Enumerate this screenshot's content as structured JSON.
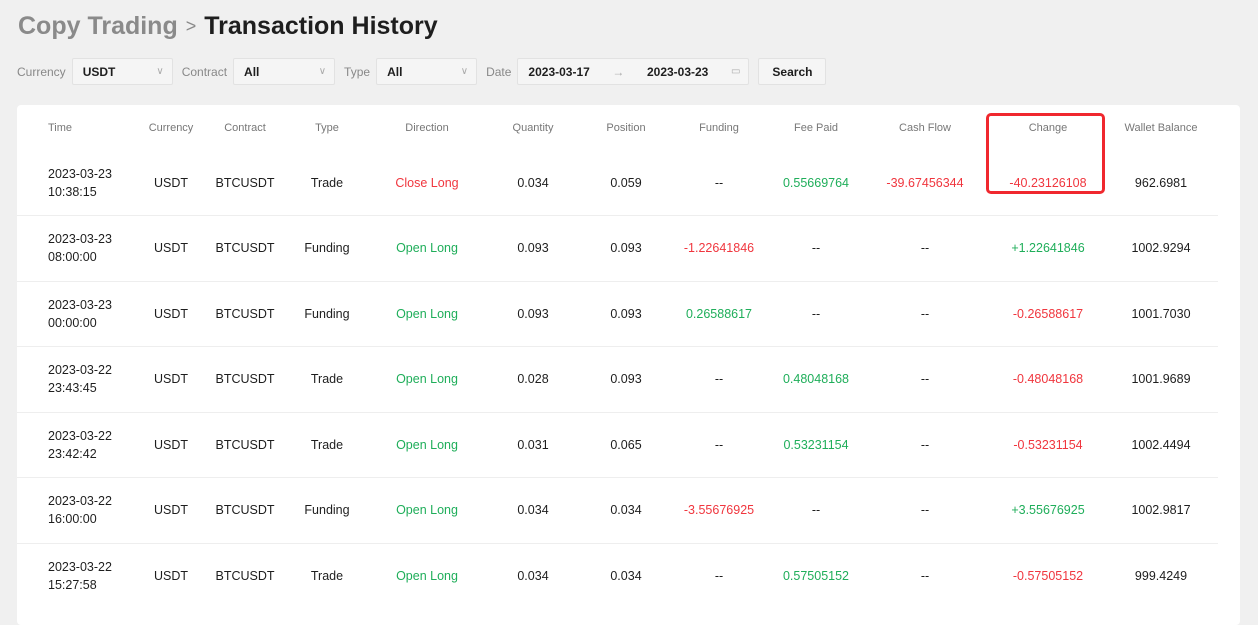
{
  "breadcrumb": {
    "parent": "Copy Trading",
    "separator": ">",
    "current": "Transaction History"
  },
  "filters": {
    "currency_label": "Currency",
    "currency": "USDT",
    "contract_label": "Contract",
    "contract": "All",
    "type_label": "Type",
    "type": "All",
    "date_label": "Date",
    "date_from": "2023-03-17",
    "date_arrow": "→",
    "date_to": "2023-03-23",
    "search": "Search"
  },
  "colors": {
    "negative": "#f0363e",
    "positive": "#1fae5a",
    "highlight": "#f0282e"
  },
  "table": {
    "headers": [
      "Time",
      "Currency",
      "Contract",
      "Type",
      "Direction",
      "Quantity",
      "Position",
      "Funding",
      "Fee Paid",
      "Cash Flow",
      "Change",
      "Wallet Balance"
    ],
    "rows": [
      {
        "date": "2023-03-23",
        "time": "10:38:15",
        "currency": "USDT",
        "contract": "BTCUSDT",
        "type": "Trade",
        "direction": "Close Long",
        "quantity": "0.034",
        "position": "0.059",
        "funding": "--",
        "fee": "0.55669764",
        "cash_flow": "-39.67456344",
        "change": "-40.23126108",
        "wallet": "962.6981"
      },
      {
        "date": "2023-03-23",
        "time": "08:00:00",
        "currency": "USDT",
        "contract": "BTCUSDT",
        "type": "Funding",
        "direction": "Open Long",
        "quantity": "0.093",
        "position": "0.093",
        "funding": "-1.22641846",
        "fee": "--",
        "cash_flow": "--",
        "change": "+1.22641846",
        "wallet": "1002.9294"
      },
      {
        "date": "2023-03-23",
        "time": "00:00:00",
        "currency": "USDT",
        "contract": "BTCUSDT",
        "type": "Funding",
        "direction": "Open Long",
        "quantity": "0.093",
        "position": "0.093",
        "funding": "0.26588617",
        "fee": "--",
        "cash_flow": "--",
        "change": "-0.26588617",
        "wallet": "1001.7030"
      },
      {
        "date": "2023-03-22",
        "time": "23:43:45",
        "currency": "USDT",
        "contract": "BTCUSDT",
        "type": "Trade",
        "direction": "Open Long",
        "quantity": "0.028",
        "position": "0.093",
        "funding": "--",
        "fee": "0.48048168",
        "cash_flow": "--",
        "change": "-0.48048168",
        "wallet": "1001.9689"
      },
      {
        "date": "2023-03-22",
        "time": "23:42:42",
        "currency": "USDT",
        "contract": "BTCUSDT",
        "type": "Trade",
        "direction": "Open Long",
        "quantity": "0.031",
        "position": "0.065",
        "funding": "--",
        "fee": "0.53231154",
        "cash_flow": "--",
        "change": "-0.53231154",
        "wallet": "1002.4494"
      },
      {
        "date": "2023-03-22",
        "time": "16:00:00",
        "currency": "USDT",
        "contract": "BTCUSDT",
        "type": "Funding",
        "direction": "Open Long",
        "quantity": "0.034",
        "position": "0.034",
        "funding": "-3.55676925",
        "fee": "--",
        "cash_flow": "--",
        "change": "+3.55676925",
        "wallet": "1002.9817"
      },
      {
        "date": "2023-03-22",
        "time": "15:27:58",
        "currency": "USDT",
        "contract": "BTCUSDT",
        "type": "Trade",
        "direction": "Open Long",
        "quantity": "0.034",
        "position": "0.034",
        "funding": "--",
        "fee": "0.57505152",
        "cash_flow": "--",
        "change": "-0.57505152",
        "wallet": "999.4249"
      }
    ]
  }
}
